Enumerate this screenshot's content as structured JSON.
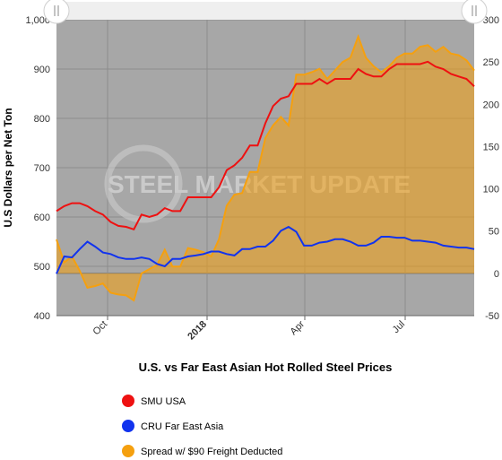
{
  "chart_data": {
    "type": "line",
    "title": "U.S. vs Far East Asian Hot Rolled Steel Prices",
    "ylabel": "U.S Dollars per Net Ton",
    "ylim": [
      400,
      1000
    ],
    "yticks": [
      "400",
      "500",
      "600",
      "700",
      "800",
      "900",
      "1,000"
    ],
    "y2lim": [
      -50,
      300
    ],
    "y2ticks": [
      "-50",
      "0",
      "50",
      "100",
      "150",
      "200",
      "250",
      "300"
    ],
    "xticks": [
      "Oct",
      "2018",
      "Apr",
      "Jul"
    ],
    "watermark": "STEEL MARKET UPDATE",
    "grid": true,
    "legend_position": "bottom",
    "series": [
      {
        "name": "SMU USA",
        "color": "#ee1111",
        "axis": "left",
        "values": [
          612,
          622,
          628,
          628,
          622,
          612,
          605,
          590,
          582,
          580,
          575,
          605,
          600,
          605,
          618,
          612,
          612,
          640,
          640,
          640,
          640,
          660,
          695,
          705,
          720,
          745,
          745,
          790,
          825,
          840,
          845,
          870,
          870,
          870,
          880,
          870,
          880,
          880,
          880,
          900,
          890,
          885,
          885,
          900,
          910,
          910,
          910,
          910,
          915,
          905,
          900,
          890,
          885,
          880,
          865
        ]
      },
      {
        "name": "CRU Far East Asia",
        "color": "#1133ee",
        "axis": "left",
        "values": [
          485,
          520,
          518,
          535,
          550,
          540,
          528,
          525,
          518,
          515,
          515,
          518,
          515,
          505,
          500,
          515,
          515,
          520,
          522,
          525,
          530,
          530,
          525,
          522,
          535,
          535,
          540,
          540,
          552,
          572,
          580,
          570,
          542,
          542,
          548,
          550,
          555,
          555,
          550,
          542,
          542,
          548,
          560,
          560,
          558,
          558,
          552,
          552,
          550,
          548,
          542,
          540,
          538,
          538,
          535
        ]
      },
      {
        "name": "Spread w/ $90 Freight Deducted",
        "color": "#f5a00f",
        "axis": "right",
        "values": [
          40,
          13,
          20,
          3,
          -17,
          -15,
          -12,
          -23,
          -25,
          -26,
          -32,
          0,
          5,
          10,
          28,
          8,
          8,
          30,
          28,
          25,
          20,
          40,
          80,
          93,
          95,
          120,
          120,
          160,
          175,
          185,
          175,
          235,
          235,
          238,
          242,
          230,
          240,
          250,
          255,
          280,
          255,
          245,
          238,
          245,
          255,
          260,
          260,
          268,
          270,
          262,
          268,
          260,
          258,
          252,
          240
        ]
      }
    ]
  }
}
